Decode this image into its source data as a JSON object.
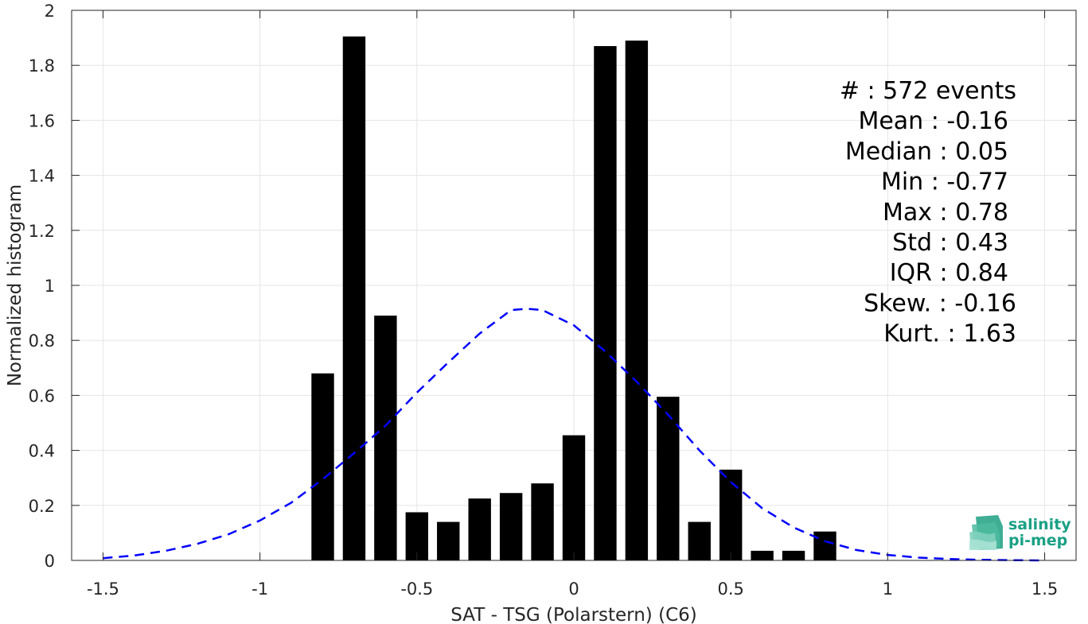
{
  "chart_data": {
    "type": "bar",
    "xlabel": "SAT - TSG (Polarstern) (C6)",
    "ylabel": "Normalized histogram",
    "xlim": [
      -1.6,
      1.6
    ],
    "ylim": [
      0,
      2
    ],
    "xticks": [
      -1.5,
      -1,
      -0.5,
      0,
      0.5,
      1,
      1.5
    ],
    "xtick_labels": [
      "-1.5",
      "-1",
      "-0.5",
      "0",
      "0.5",
      "1",
      "1.5"
    ],
    "yticks": [
      0,
      0.2,
      0.4,
      0.6,
      0.8,
      1,
      1.2,
      1.4,
      1.6,
      1.8,
      2
    ],
    "ytick_labels": [
      "0",
      "0.2",
      "0.4",
      "0.6",
      "0.8",
      "1",
      "1.2",
      "1.4",
      "1.6",
      "1.8",
      "2"
    ],
    "grid": true,
    "bin_width": 0.1,
    "bar_color": "#000000",
    "bars": [
      {
        "x": -0.8,
        "y": 0.68
      },
      {
        "x": -0.7,
        "y": 1.905
      },
      {
        "x": -0.6,
        "y": 0.89
      },
      {
        "x": -0.5,
        "y": 0.175
      },
      {
        "x": -0.4,
        "y": 0.14
      },
      {
        "x": -0.3,
        "y": 0.225
      },
      {
        "x": -0.2,
        "y": 0.245
      },
      {
        "x": -0.1,
        "y": 0.28
      },
      {
        "x": 0.0,
        "y": 0.455
      },
      {
        "x": 0.1,
        "y": 1.87
      },
      {
        "x": 0.2,
        "y": 1.89
      },
      {
        "x": 0.3,
        "y": 0.595
      },
      {
        "x": 0.4,
        "y": 0.14
      },
      {
        "x": 0.5,
        "y": 0.33
      },
      {
        "x": 0.6,
        "y": 0.035
      },
      {
        "x": 0.7,
        "y": 0.035
      },
      {
        "x": 0.8,
        "y": 0.105
      }
    ],
    "fit_curve": {
      "style": "dashed",
      "color": "#0000ff",
      "points": [
        {
          "x": -1.5,
          "y": 0.008
        },
        {
          "x": -1.4,
          "y": 0.018
        },
        {
          "x": -1.3,
          "y": 0.035
        },
        {
          "x": -1.2,
          "y": 0.06
        },
        {
          "x": -1.1,
          "y": 0.095
        },
        {
          "x": -1.0,
          "y": 0.145
        },
        {
          "x": -0.9,
          "y": 0.21
        },
        {
          "x": -0.8,
          "y": 0.295
        },
        {
          "x": -0.7,
          "y": 0.39
        },
        {
          "x": -0.6,
          "y": 0.49
        },
        {
          "x": -0.5,
          "y": 0.61
        },
        {
          "x": -0.4,
          "y": 0.72
        },
        {
          "x": -0.3,
          "y": 0.825
        },
        {
          "x": -0.2,
          "y": 0.91
        },
        {
          "x": -0.15,
          "y": 0.915
        },
        {
          "x": -0.1,
          "y": 0.91
        },
        {
          "x": 0.0,
          "y": 0.855
        },
        {
          "x": 0.1,
          "y": 0.76
        },
        {
          "x": 0.2,
          "y": 0.65
        },
        {
          "x": 0.3,
          "y": 0.53
        },
        {
          "x": 0.4,
          "y": 0.4
        },
        {
          "x": 0.5,
          "y": 0.285
        },
        {
          "x": 0.6,
          "y": 0.19
        },
        {
          "x": 0.7,
          "y": 0.12
        },
        {
          "x": 0.8,
          "y": 0.07
        },
        {
          "x": 0.9,
          "y": 0.038
        },
        {
          "x": 1.0,
          "y": 0.02
        },
        {
          "x": 1.1,
          "y": 0.01
        },
        {
          "x": 1.2,
          "y": 0.005
        },
        {
          "x": 1.3,
          "y": 0.002
        },
        {
          "x": 1.4,
          "y": 0.001
        },
        {
          "x": 1.5,
          "y": 0.0
        }
      ]
    },
    "stats_lines": [
      "#  : 572 events",
      "Mean : -0.16",
      "Median : 0.05",
      "Min : -0.77",
      "Max : 0.78",
      "Std : 0.43",
      "IQR : 0.84",
      "Skew. : -0.16",
      "Kurt. : 1.63"
    ]
  },
  "logo": {
    "line1": "salinity",
    "line2": "pi-mep",
    "color": "#1aa085"
  }
}
